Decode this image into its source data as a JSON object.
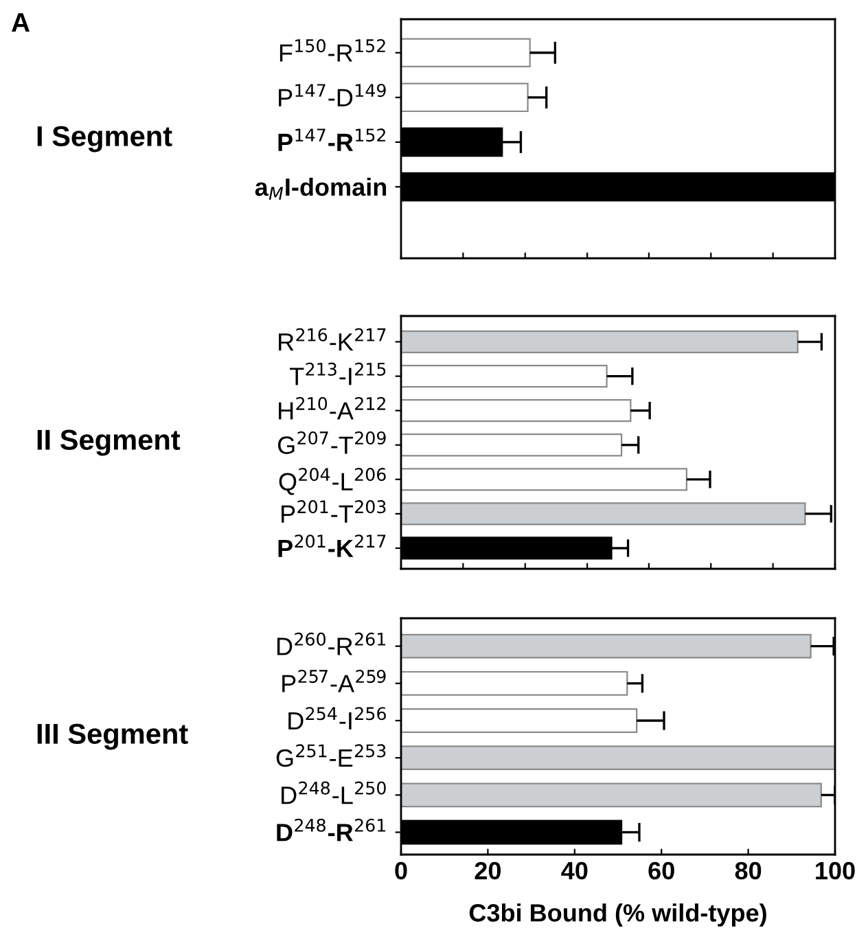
{
  "chart_data": [
    {
      "type": "bar",
      "orientation": "horizontal",
      "ylabel": "I Segment",
      "annotations": [
        "A"
      ],
      "categories": [
        "F$^{150}$-R$^{152}$",
        "P$^{147}$-D$^{149}$",
        "P$^{147}$-R$^{152}$",
        "a$_{M}$I-domain"
      ],
      "values": [
        29.7,
        29.2,
        23.3,
        100
      ],
      "colors": [
        "#ffffff",
        "#ffffff",
        "#000000",
        "#000000"
      ],
      "errors": [
        [
          29.7,
          35.5
        ],
        [
          29.2,
          33.5
        ],
        [
          23.3,
          27.6
        ],
        null
      ],
      "xlim": [
        0,
        100
      ],
      "xticks": [
        {
          "value": 0,
          "label": null
        },
        {
          "value": 14.3,
          "label": null
        },
        {
          "value": 28.6,
          "label": null
        },
        {
          "value": 42.9,
          "label": null
        },
        {
          "value": 57.1,
          "label": null
        },
        {
          "value": 71.4,
          "label": null
        },
        {
          "value": 85.7,
          "label": null
        },
        {
          "value": 100,
          "label": null
        }
      ],
      "tick_labels": "y",
      "grid": false,
      "legend": false
    },
    {
      "type": "bar",
      "orientation": "horizontal",
      "ylabel": "II Segment",
      "categories": [
        "R$^{216}$-K$^{217}$",
        "T$^{213}$-I$^{215}$",
        "H$^{210}$-A$^{212}$",
        "G$^{207}$-T$^{209}$",
        "Q$^{204}$-L$^{206}$",
        "P$^{201}$-T$^{203}$",
        "P$^{201}$-K$^{217}$"
      ],
      "values": [
        91.4,
        47.4,
        52.9,
        50.8,
        65.8,
        93.1,
        48.5
      ],
      "colors": [
        "#cccfd1",
        "#ffffff",
        "#ffffff",
        "#ffffff",
        "#ffffff",
        "#cccfd1",
        "#000000"
      ],
      "errors": [
        [
          91.4,
          96.9
        ],
        [
          47.4,
          53.3
        ],
        [
          52.9,
          57.3
        ],
        [
          50.8,
          54.7
        ],
        [
          65.8,
          71.2
        ],
        [
          93.1,
          99.1
        ],
        [
          48.5,
          52.3
        ]
      ],
      "xlim": [
        0,
        100
      ],
      "xticks": [
        {
          "value": 0,
          "label": null
        },
        {
          "value": 14.3,
          "label": null
        },
        {
          "value": 28.6,
          "label": null
        },
        {
          "value": 42.9,
          "label": null
        },
        {
          "value": 57.1,
          "label": null
        },
        {
          "value": 71.4,
          "label": null
        },
        {
          "value": 85.7,
          "label": null
        },
        {
          "value": 100,
          "label": null
        }
      ],
      "tick_labels": "y",
      "grid": false,
      "legend": false
    },
    {
      "type": "bar",
      "orientation": "horizontal",
      "ylabel": "III Segment",
      "xlabel": "C3bi Bound (% wild-type)",
      "categories": [
        "D$^{260}$-R$^{261}$",
        "P$^{257}$-A$^{259}$",
        "D$^{254}$-I$^{256}$",
        "G$^{251}$-E$^{253}$",
        "D$^{248}$-L$^{250}$",
        "D$^{248}$-R$^{261}$"
      ],
      "values": [
        94.4,
        52.1,
        54.3,
        100,
        96.8,
        50.8
      ],
      "colors": [
        "#cccfd1",
        "#ffffff",
        "#ffffff",
        "#cccfd1",
        "#cccfd1",
        "#000000"
      ],
      "errors": [
        [
          94.4,
          99.7
        ],
        [
          52.1,
          55.6
        ],
        [
          54.3,
          60.6
        ],
        null,
        [
          96.8,
          100
        ],
        [
          50.8,
          54.9
        ]
      ],
      "xlim": [
        0,
        100
      ],
      "xticks": [
        0,
        20,
        40,
        60,
        80,
        100
      ],
      "grid": false,
      "legend": false
    }
  ]
}
